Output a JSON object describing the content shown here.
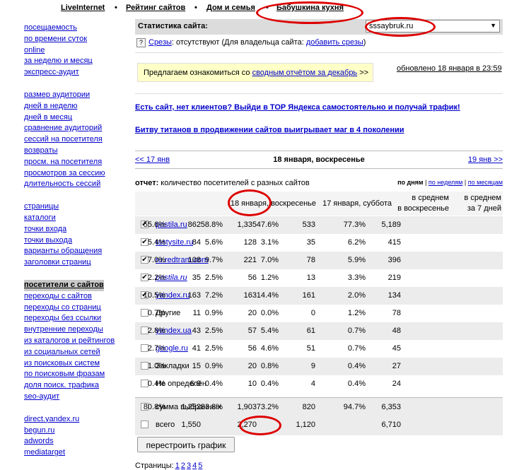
{
  "topnav": [
    "LiveInternet",
    "Рейтинг сайтов",
    "Дом и семья",
    "Бабушкина кухня"
  ],
  "sidebar": [
    [
      "посещаемость",
      "по времени суток",
      "online",
      "за неделю и месяц",
      "экспресс-аудит"
    ],
    [
      "размер аудитории",
      "дней в неделю",
      "дней в месяц",
      "сравнение аудиторий",
      "сессий на посетителя",
      "возвраты",
      "просм. на посетителя",
      "просмотров за сессию",
      "длительность сессий"
    ],
    [
      "страницы",
      "каталоги",
      "точки входа",
      "точки выхода",
      "варианты обращения",
      "заголовки страниц"
    ],
    [
      "посетители с сайтов",
      "переходы с сайтов",
      "переходы со страниц",
      "переходы без ссылки",
      "внутренние переходы",
      "из каталогов и рейтингов",
      "из социальных сетей",
      "из поисковых систем",
      "по поисковым фразам",
      "доля поиск. трафика",
      "seo-аудит"
    ],
    [
      "direct.yandex.ru",
      "begun.ru",
      "adwords",
      "mediatarget"
    ]
  ],
  "stat": {
    "label": "Статистика сайта:",
    "site": "sssaybruk.ru"
  },
  "srezy": {
    "link": "Срезы",
    "text": ": отсутствуют (Для владельца сайта: ",
    "add": "добавить срезы",
    "close": ")"
  },
  "promo": {
    "prefix": "Предлагаем ознакомиться со ",
    "link": "сводным отчётом за декабрь",
    "suffix": " >>"
  },
  "updated": "обновлено 18 января в 23:59",
  "ads": [
    "Есть сайт, нет клиентов? Выйди в ТОР Яндекса самостоятельно и получай трафик!",
    "Битву титанов в продвижении сайтов выигрывает маг в 4 поколении"
  ],
  "daynav": {
    "prev": "<< 17 янв",
    "current": "18 января, воскресенье",
    "next": "19 янв >>"
  },
  "report": {
    "label": "отчет:",
    "text": " количество посетителей с разных сайтов"
  },
  "modes": {
    "active": "по дням",
    "weeks": "по неделям",
    "months": "по месяцам"
  },
  "headers": {
    "col1": "18 января, воскресенье",
    "col2": "17 января, суббота",
    "col3": [
      "в среднем",
      "в воскресенье"
    ],
    "col4": [
      "в среднем",
      "за 7 дней"
    ]
  },
  "rows": [
    {
      "name": "postila.ru",
      "link": true,
      "italic": false,
      "checked": true,
      "v": [
        "5,189",
        "77.3%",
        "533",
        "47.6%",
        "1,335",
        "58.8%",
        "862",
        "55.6%"
      ]
    },
    {
      "name": "tastysite.ru",
      "link": true,
      "italic": false,
      "checked": true,
      "v": [
        "415",
        "6.2%",
        "35",
        "3.1%",
        "128",
        "5.6%",
        "84",
        "5.4%"
      ]
    },
    {
      "name": "ru.redtram.com",
      "link": true,
      "italic": false,
      "checked": true,
      "v": [
        "396",
        "5.9%",
        "78",
        "7.0%",
        "221",
        "9.7%",
        "108",
        "7.0%"
      ]
    },
    {
      "name": "postila.ru",
      "link": true,
      "italic": true,
      "checked": true,
      "v": [
        "219",
        "3.3%",
        "13",
        "1.2%",
        "56",
        "2.5%",
        "35",
        "2.2%"
      ]
    },
    {
      "name": "yandex.ru",
      "link": true,
      "italic": false,
      "checked": true,
      "v": [
        "134",
        "2.0%",
        "161",
        "14.4%",
        "163",
        "7.2%",
        "163",
        "10.5%"
      ]
    },
    {
      "name": "Другие",
      "link": false,
      "italic": false,
      "checked": false,
      "v": [
        "78",
        "1.2%",
        "0",
        "0.0%",
        "20",
        "0.9%",
        "11",
        "0.7%"
      ]
    },
    {
      "name": "yandex.ua",
      "link": true,
      "italic": false,
      "checked": false,
      "v": [
        "48",
        "0.7%",
        "61",
        "5.4%",
        "57",
        "2.5%",
        "43",
        "2.8%"
      ]
    },
    {
      "name": "google.ru",
      "link": true,
      "italic": false,
      "checked": false,
      "v": [
        "45",
        "0.7%",
        "51",
        "4.6%",
        "56",
        "2.5%",
        "41",
        "2.7%"
      ]
    },
    {
      "name": "Закладки",
      "link": false,
      "italic": false,
      "checked": false,
      "v": [
        "27",
        "0.4%",
        "9",
        "0.8%",
        "20",
        "0.9%",
        "15",
        "1.0%"
      ]
    },
    {
      "name": "Не определён",
      "link": false,
      "italic": false,
      "checked": false,
      "v": [
        "24",
        "0.4%",
        "4",
        "0.4%",
        "10",
        "0.4%",
        "6.9",
        "0.4%"
      ]
    }
  ],
  "totals": [
    {
      "name": "сумма выбранных",
      "v": [
        "6,353",
        "94.7%",
        "820",
        "73.2%",
        "1,903",
        "83.8%",
        "1,252",
        "80.8%"
      ]
    },
    {
      "name": "всего",
      "v": [
        "6,710",
        "",
        "1,120",
        "",
        "2,270",
        "",
        "1,550",
        ""
      ]
    }
  ],
  "button": "перестроить график",
  "pages": {
    "label": "Страницы:",
    "items": [
      "1",
      "2",
      "3",
      "4",
      "5"
    ]
  }
}
